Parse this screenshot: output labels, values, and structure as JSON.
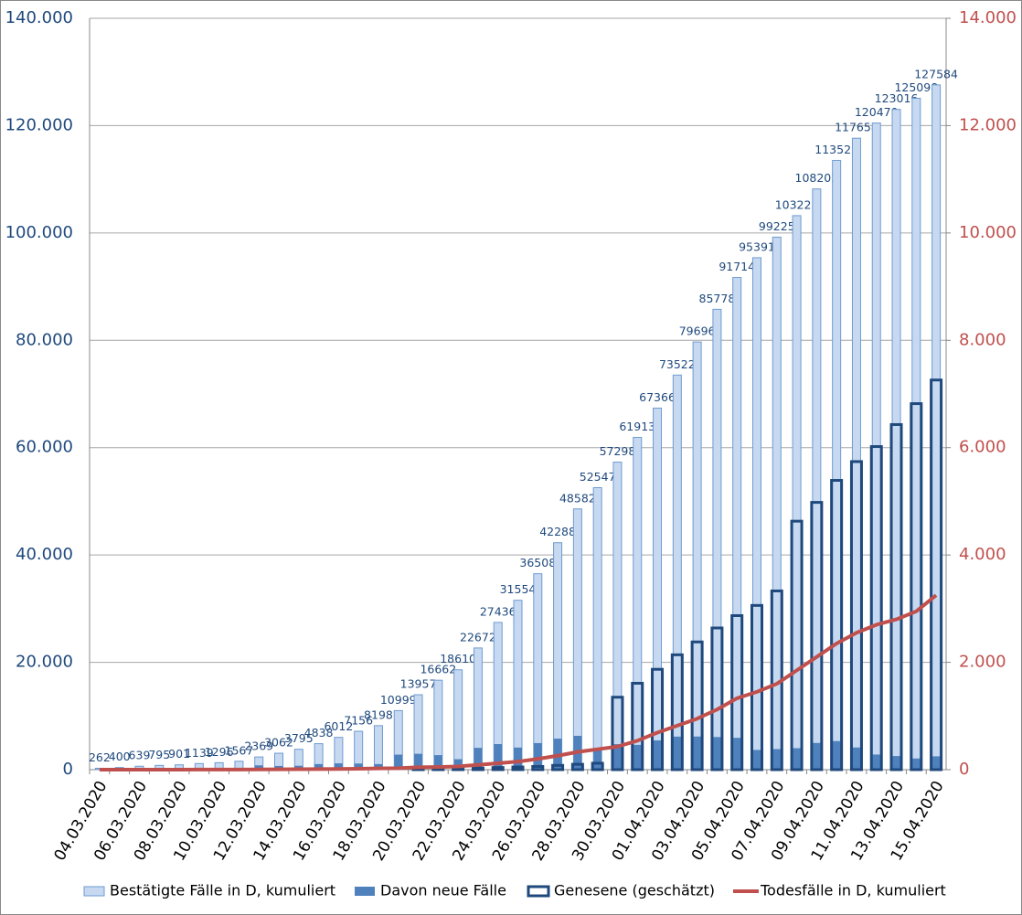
{
  "chart_data": {
    "type": "bar",
    "categories": [
      "04.03.2020",
      null,
      "06.03.2020",
      null,
      "08.03.2020",
      null,
      "10.03.2020",
      null,
      "12.03.2020",
      null,
      "14.03.2020",
      null,
      "16.03.2020",
      null,
      "18.03.2020",
      null,
      "20.03.2020",
      null,
      "22.03.2020",
      null,
      "24.03.2020",
      null,
      "26.03.2020",
      null,
      "28.03.2020",
      null,
      "30.03.2020",
      null,
      "01.04.2020",
      null,
      "03.04.2020",
      null,
      "05.04.2020",
      null,
      "07.04.2020",
      null,
      "09.04.2020",
      null,
      "11.04.2020",
      null,
      "13.04.2020",
      null,
      "15.04.2020"
    ],
    "series": [
      {
        "name": "Bestätigte Fälle in D, kumuliert",
        "type": "bar",
        "color": "#c6d9f1",
        "outline": "#6f9bd1",
        "data_labels": true,
        "values": [
          262,
          400,
          639,
          795,
          901,
          1139,
          1296,
          1567,
          2369,
          3062,
          3795,
          4838,
          6012,
          7156,
          8198,
          10999,
          13957,
          16662,
          18610,
          22672,
          27436,
          31554,
          36508,
          42288,
          48582,
          52547,
          57298,
          61913,
          67366,
          73522,
          79696,
          85778,
          91714,
          95391,
          99225,
          103228,
          108202,
          113525,
          117658,
          120479,
          123016,
          125098,
          127584
        ]
      },
      {
        "name": "Davon neue Fälle",
        "type": "bar",
        "color": "#4f81bd",
        "values": [
          100,
          138,
          239,
          156,
          106,
          238,
          157,
          271,
          802,
          693,
          733,
          1043,
          1174,
          1144,
          1042,
          2801,
          2958,
          2705,
          1948,
          4062,
          4764,
          4118,
          4954,
          5780,
          6294,
          3965,
          4751,
          4615,
          5453,
          6156,
          6174,
          6082,
          5936,
          3677,
          3834,
          4003,
          4974,
          5323,
          4133,
          2821,
          2537,
          2082,
          2486
        ]
      },
      {
        "name": "Genesene (geschätzt)",
        "type": "outline-bar",
        "color": "#1f497d",
        "values": [
          0,
          0,
          0,
          0,
          0,
          0,
          0,
          0,
          0,
          0,
          0,
          0,
          0,
          0,
          0,
          0,
          100,
          150,
          200,
          300,
          400,
          500,
          600,
          800,
          1000,
          1200,
          13500,
          16100,
          18700,
          21400,
          23800,
          26400,
          28700,
          30600,
          33300,
          46300,
          49800,
          53900,
          57400,
          60200,
          64300,
          68200,
          72600
        ]
      },
      {
        "name": "Todesfälle in D, kumuliert",
        "type": "line",
        "color": "#c0504d",
        "axis": "y2",
        "values": [
          0,
          0,
          0,
          0,
          0,
          2,
          2,
          3,
          5,
          7,
          9,
          11,
          13,
          17,
          24,
          28,
          44,
          50,
          60,
          90,
          120,
          150,
          200,
          260,
          330,
          380,
          430,
          540,
          690,
          820,
          950,
          1120,
          1330,
          1450,
          1600,
          1850,
          2100,
          2350,
          2550,
          2700,
          2800,
          2950,
          3250
        ]
      }
    ],
    "ylim": [
      0,
      140000
    ],
    "yticks": [
      0,
      {
        "value": 20000,
        "label": "20.000"
      },
      {
        "value": 40000,
        "label": "40.000"
      },
      {
        "value": 60000,
        "label": "60.000"
      },
      {
        "value": 80000,
        "label": "80.000"
      },
      {
        "value": 100000,
        "label": "100.000"
      },
      {
        "value": 120000,
        "label": "120.000"
      },
      {
        "value": 140000,
        "label": "140.000"
      }
    ],
    "y2lim": [
      0,
      14000
    ],
    "y2ticks": [
      0,
      {
        "value": 2000,
        "label": "2.000"
      },
      {
        "value": 4000,
        "label": "4.000"
      },
      {
        "value": 6000,
        "label": "6.000"
      },
      {
        "value": 8000,
        "label": "8.000"
      },
      {
        "value": 10000,
        "label": "10.000"
      },
      {
        "value": 12000,
        "label": "12.000"
      },
      {
        "value": 14000,
        "label": "14.000"
      }
    ],
    "grid": true,
    "legend": "bottom",
    "y_color": "#1f497d",
    "y2_color": "#c0504d"
  }
}
